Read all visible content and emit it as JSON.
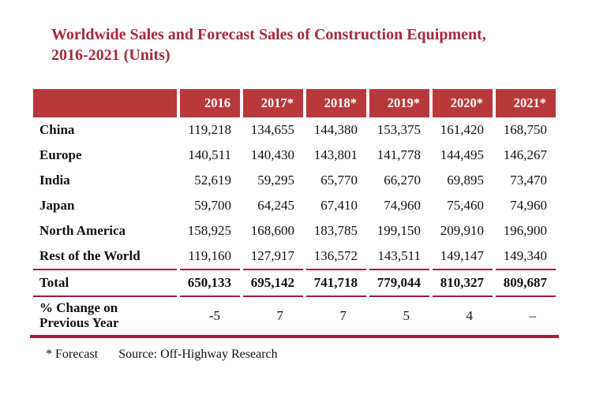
{
  "title": {
    "line1": "Worldwide Sales and Forecast Sales of Construction Equipment,",
    "line2": "2016-2021 (Units)"
  },
  "table": {
    "columns": [
      "",
      "2016",
      "2017*",
      "2018*",
      "2019*",
      "2020*",
      "2021*"
    ],
    "rows": [
      {
        "label": "China",
        "values": [
          "119,218",
          "134,655",
          "144,380",
          "153,375",
          "161,420",
          "168,750"
        ]
      },
      {
        "label": "Europe",
        "values": [
          "140,511",
          "140,430",
          "143,801",
          "141,778",
          "144,495",
          "146,267"
        ]
      },
      {
        "label": "India",
        "values": [
          "52,619",
          "59,295",
          "65,770",
          "66,270",
          "69,895",
          "73,470"
        ]
      },
      {
        "label": "Japan",
        "values": [
          "59,700",
          "64,245",
          "67,410",
          "74,960",
          "75,460",
          "74,960"
        ]
      },
      {
        "label": "North America",
        "values": [
          "158,925",
          "168,600",
          "183,785",
          "199,150",
          "209,910",
          "196,900"
        ]
      },
      {
        "label": "Rest of the World",
        "values": [
          "119,160",
          "127,917",
          "136,572",
          "143,511",
          "149,147",
          "149,340"
        ]
      }
    ],
    "total_row": {
      "label": "Total",
      "values": [
        "650,133",
        "695,142",
        "741,718",
        "779,044",
        "810,327",
        "809,687"
      ]
    },
    "change_row": {
      "label": [
        "% Change on",
        "Previous Year"
      ],
      "values": [
        "-5",
        "7",
        "7",
        "5",
        "4",
        "–"
      ]
    }
  },
  "footer": {
    "forecast_note": "* Forecast",
    "source": "Source: Off-Highway Research"
  },
  "colors": {
    "header_bg": "#B8393C",
    "title_text": "#A42A3A",
    "rule": "#9D2136",
    "rule_heavy": "#9D2136",
    "body_text": "#111111"
  }
}
